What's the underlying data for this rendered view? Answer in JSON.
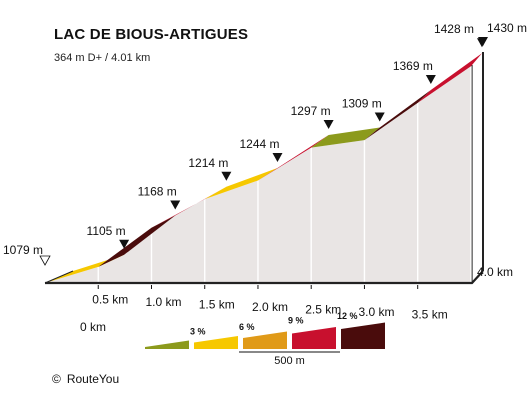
{
  "title": "LAC DE BIOUS-ARTIGUES",
  "subtitle": "364 m D+ / 4.01 km",
  "credit": {
    "symbol": "©",
    "text": "RouteYou"
  },
  "chart_data": {
    "type": "area",
    "title": "LAC DE BIOUS-ARTIGUES",
    "subtitle": "364 m D+ / 4.01 km",
    "xlabel": "",
    "ylabel": "",
    "x_unit": "km",
    "y_unit": "m",
    "x_ticks": [
      "0 km",
      "0.5 km",
      "1.0 km",
      "1.5 km",
      "2.0 km",
      "2.5 km",
      "3.0 km",
      "3.5 km",
      "4.0 km"
    ],
    "x_tick_values": [
      0,
      0.5,
      1.0,
      1.5,
      2.0,
      2.5,
      3.0,
      3.5,
      4.0
    ],
    "xlim": [
      0,
      4.01
    ],
    "ylim": [
      1079,
      1430
    ],
    "points": [
      {
        "x": 0.0,
        "y": 1079,
        "label": "1079 m"
      },
      {
        "x": 0.5,
        "y": 1105,
        "label": "1105 m"
      },
      {
        "x": 1.0,
        "y": 1168,
        "label": "1168 m"
      },
      {
        "x": 1.5,
        "y": 1214,
        "label": "1214 m"
      },
      {
        "x": 2.0,
        "y": 1244,
        "label": "1244 m"
      },
      {
        "x": 2.5,
        "y": 1297,
        "label": "1297 m"
      },
      {
        "x": 3.0,
        "y": 1309,
        "label": "1309 m"
      },
      {
        "x": 3.5,
        "y": 1369,
        "label": "1369 m"
      },
      {
        "x": 4.0,
        "y": 1428,
        "label": "1428 m"
      },
      {
        "x": 4.01,
        "y": 1430,
        "label": "1430 m"
      }
    ],
    "segment_colors": [
      "#f6c800",
      "#4a0c0c",
      "#c8102e",
      "#f6c800",
      "#c8102e",
      "#8c9a1c",
      "#4a0c0c",
      "#c8102e",
      "#c8102e"
    ],
    "legend": {
      "items": [
        {
          "label": "",
          "color": "#8c9a1c"
        },
        {
          "label": "3 %",
          "color": "#f6c800"
        },
        {
          "label": "6 %",
          "color": "#e09a18"
        },
        {
          "label": "9 %",
          "color": "#c8102e"
        },
        {
          "label": "12 %",
          "color": "#4a0c0c"
        }
      ],
      "scale_label": "500 m",
      "placement": "bottom-center"
    },
    "colors": {
      "side_face": "#e9e5e4",
      "edge": "#222222",
      "tick_light": "#ffffff"
    }
  }
}
